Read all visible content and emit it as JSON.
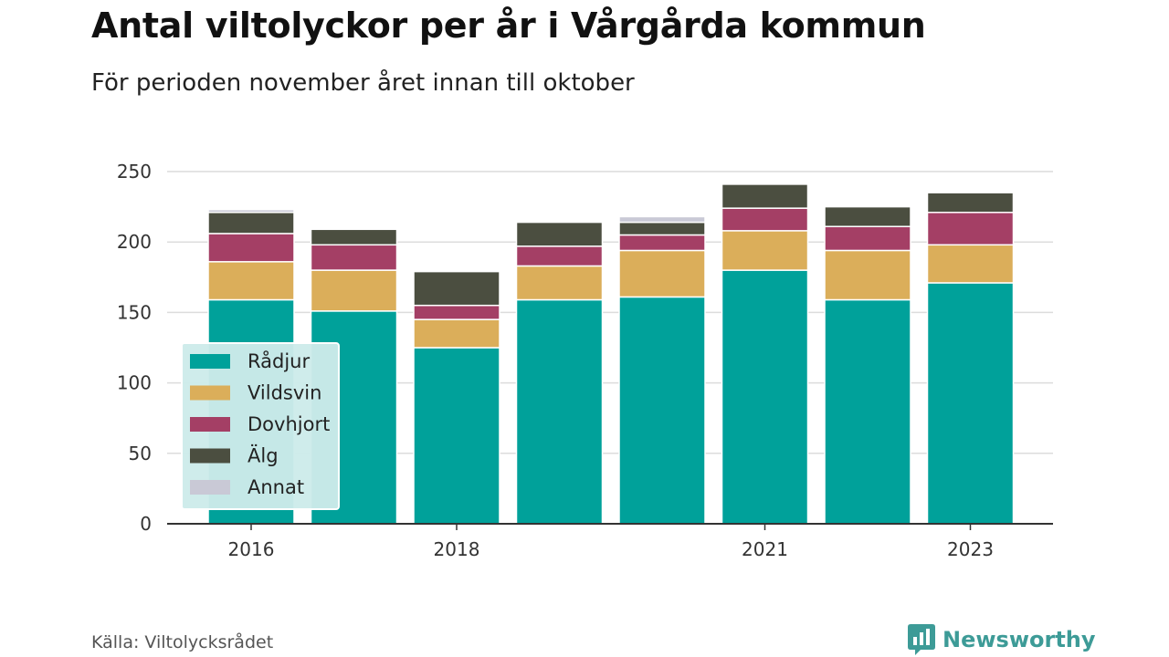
{
  "title": "Antal viltolyckor per år i Vårgårda kommun",
  "subtitle": "För perioden november året innan till oktober",
  "source": "Källa: Viltolycksrådet",
  "brand": "Newsworthy",
  "colors": {
    "background": "#ffffff",
    "gridline": "#dcdcdc",
    "axis": "#333333",
    "legend_background": "#cdebea",
    "brand": "#3d9b97"
  },
  "chart_data": {
    "type": "bar",
    "stacked": true,
    "x": [
      2016,
      2017,
      2018,
      2019,
      2020,
      2021,
      2022,
      2023
    ],
    "x_tick_labels": [
      {
        "x": 2016,
        "label": "2016"
      },
      {
        "x": 2018,
        "label": "2018"
      },
      {
        "x": 2021,
        "label": "2021"
      },
      {
        "x": 2023,
        "label": "2023"
      }
    ],
    "ylim": [
      0,
      250
    ],
    "y_ticks": [
      0,
      50,
      100,
      150,
      200,
      250
    ],
    "grid": true,
    "legend_position": "bottom-left",
    "series": [
      {
        "name": "Rådjur",
        "color": "#00a19a",
        "values": [
          159,
          151,
          125,
          159,
          161,
          180,
          159,
          171
        ]
      },
      {
        "name": "Vildsvin",
        "color": "#dbae5a",
        "values": [
          27,
          29,
          20,
          24,
          33,
          28,
          35,
          27
        ]
      },
      {
        "name": "Dovhjort",
        "color": "#a43f65",
        "values": [
          20,
          18,
          10,
          14,
          11,
          16,
          17,
          23
        ]
      },
      {
        "name": "Älg",
        "color": "#4b4e40",
        "values": [
          15,
          11,
          24,
          17,
          9,
          17,
          14,
          14
        ]
      },
      {
        "name": "Annat",
        "color": "#c9c9d6",
        "values": [
          2,
          0,
          0,
          0,
          4,
          0,
          0,
          0
        ]
      }
    ]
  }
}
